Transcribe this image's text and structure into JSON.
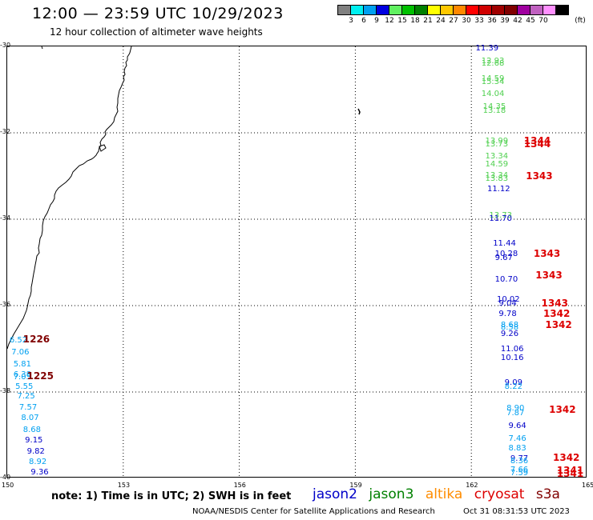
{
  "title": "12:00 — 23:59 UTC 10/29/2023",
  "subtitle": "12 hour collection of altimeter wave heights",
  "legend": {
    "colors": [
      "#808080",
      "#00f0f0",
      "#00a0f0",
      "#0000e0",
      "#60f060",
      "#00c000",
      "#008000",
      "#ffff00",
      "#ffc800",
      "#ff8800",
      "#ff0000",
      "#d00000",
      "#a00000",
      "#800000",
      "#a000a0",
      "#c060c0",
      "#ff90ff",
      "#000000"
    ],
    "ticks": [
      "3",
      "6",
      "9",
      "12",
      "15",
      "18",
      "21",
      "24",
      "27",
      "30",
      "33",
      "36",
      "39",
      "42",
      "45",
      "70"
    ],
    "unit": "(ft)"
  },
  "map": {
    "lat_labels": [
      "-30",
      "-32",
      "-34",
      "-36",
      "-38",
      "-40"
    ],
    "lon_labels": [
      "150",
      "153",
      "156",
      "159",
      "162",
      "165"
    ],
    "lat_range": [
      -40,
      -30
    ],
    "lon_range": [
      150,
      165
    ]
  },
  "observations": [
    {
      "text": "11.39",
      "c": "#0000c8",
      "lon": 162.13,
      "lat": -30.07
    },
    {
      "text": "12.93",
      "c": "#50d050",
      "lon": 162.28,
      "lat": -30.37
    },
    {
      "text": "12.68",
      "c": "#50d050",
      "lon": 162.28,
      "lat": -30.43
    },
    {
      "text": "14.59",
      "c": "#50d050",
      "lon": 162.28,
      "lat": -30.78
    },
    {
      "text": "15.34",
      "c": "#50d050",
      "lon": 162.28,
      "lat": -30.85
    },
    {
      "text": "14.04",
      "c": "#50d050",
      "lon": 162.28,
      "lat": -31.13
    },
    {
      "text": "14.35",
      "c": "#50d050",
      "lon": 162.32,
      "lat": -31.43
    },
    {
      "text": "13.18",
      "c": "#50d050",
      "lon": 162.32,
      "lat": -31.52
    },
    {
      "text": "13.99",
      "c": "#50d050",
      "lon": 162.38,
      "lat": -32.22
    },
    {
      "text": "13.73",
      "c": "#50d050",
      "lon": 162.38,
      "lat": -32.29
    },
    {
      "text": "13.34",
      "c": "#50d050",
      "lon": 162.38,
      "lat": -32.57
    },
    {
      "text": "14.59",
      "c": "#50d050",
      "lon": 162.38,
      "lat": -32.76
    },
    {
      "text": "13.34",
      "c": "#50d050",
      "lon": 162.38,
      "lat": -33.02
    },
    {
      "text": "13.83",
      "c": "#50d050",
      "lon": 162.38,
      "lat": -33.1
    },
    {
      "text": "11.12",
      "c": "#0000c8",
      "lon": 162.43,
      "lat": -33.33
    },
    {
      "text": "13.73",
      "c": "#50d050",
      "lon": 162.48,
      "lat": -33.95
    },
    {
      "text": "11.70",
      "c": "#0000c8",
      "lon": 162.48,
      "lat": -34.02
    },
    {
      "text": "11.44",
      "c": "#0000c8",
      "lon": 162.58,
      "lat": -34.59
    },
    {
      "text": "10.28",
      "c": "#0000c8",
      "lon": 162.63,
      "lat": -34.83
    },
    {
      "text": "9.67",
      "c": "#0000c8",
      "lon": 162.63,
      "lat": -34.93
    },
    {
      "text": "10.70",
      "c": "#0000c8",
      "lon": 162.63,
      "lat": -35.43
    },
    {
      "text": "10.02",
      "c": "#0000c8",
      "lon": 162.68,
      "lat": -35.89
    },
    {
      "text": "9.04",
      "c": "#0000c8",
      "lon": 162.73,
      "lat": -35.98
    },
    {
      "text": "9.78",
      "c": "#0000c8",
      "lon": 162.73,
      "lat": -36.22
    },
    {
      "text": "8.68",
      "c": "#00a0f0",
      "lon": 162.78,
      "lat": -36.48
    },
    {
      "text": "8.58",
      "c": "#00a0f0",
      "lon": 162.78,
      "lat": -36.53
    },
    {
      "text": "9.26",
      "c": "#0000c8",
      "lon": 162.78,
      "lat": -36.69
    },
    {
      "text": "11.06",
      "c": "#0000c8",
      "lon": 162.78,
      "lat": -37.04
    },
    {
      "text": "10.16",
      "c": "#0000c8",
      "lon": 162.78,
      "lat": -37.24
    },
    {
      "text": "9.09",
      "c": "#0000c8",
      "lon": 162.88,
      "lat": -37.81
    },
    {
      "text": "8.22",
      "c": "#00a0f0",
      "lon": 162.88,
      "lat": -37.91
    },
    {
      "text": "8.90",
      "c": "#00a0f0",
      "lon": 162.93,
      "lat": -38.41
    },
    {
      "text": "7.87",
      "c": "#00a0f0",
      "lon": 162.93,
      "lat": -38.52
    },
    {
      "text": "9.64",
      "c": "#0000c8",
      "lon": 162.98,
      "lat": -38.81
    },
    {
      "text": "7.46",
      "c": "#00a0f0",
      "lon": 162.98,
      "lat": -39.11
    },
    {
      "text": "8.83",
      "c": "#00a0f0",
      "lon": 162.98,
      "lat": -39.33
    },
    {
      "text": "9.77",
      "c": "#0000c8",
      "lon": 163.03,
      "lat": -39.57
    },
    {
      "text": "8.36",
      "c": "#00a0f0",
      "lon": 163.03,
      "lat": -39.63
    },
    {
      "text": "7.66",
      "c": "#00a0f0",
      "lon": 163.03,
      "lat": -39.83
    },
    {
      "text": "7.59",
      "c": "#00a0f0",
      "lon": 163.03,
      "lat": -39.9
    },
    {
      "text": "6.52",
      "c": "#00a0f0",
      "lon": 150.08,
      "lat": -36.83
    },
    {
      "text": "7.06",
      "c": "#00a0f0",
      "lon": 150.13,
      "lat": -37.11
    },
    {
      "text": "5.81",
      "c": "#00a0f0",
      "lon": 150.18,
      "lat": -37.39
    },
    {
      "text": "6.38",
      "c": "#00a0f0",
      "lon": 150.18,
      "lat": -37.63
    },
    {
      "text": "7.05",
      "c": "#00a0f0",
      "lon": 150.18,
      "lat": -37.69
    },
    {
      "text": "5.55",
      "c": "#00a0f0",
      "lon": 150.23,
      "lat": -37.91
    },
    {
      "text": "7.25",
      "c": "#00a0f0",
      "lon": 150.28,
      "lat": -38.13
    },
    {
      "text": "7.57",
      "c": "#00a0f0",
      "lon": 150.33,
      "lat": -38.39
    },
    {
      "text": "8.07",
      "c": "#00a0f0",
      "lon": 150.38,
      "lat": -38.63
    },
    {
      "text": "8.68",
      "c": "#00a0f0",
      "lon": 150.43,
      "lat": -38.91
    },
    {
      "text": "9.15",
      "c": "#0000c8",
      "lon": 150.48,
      "lat": -39.15
    },
    {
      "text": "9.82",
      "c": "#0000c8",
      "lon": 150.53,
      "lat": -39.41
    },
    {
      "text": "8.92",
      "c": "#00a0f0",
      "lon": 150.58,
      "lat": -39.65
    },
    {
      "text": "9.36",
      "c": "#0000c8",
      "lon": 150.63,
      "lat": -39.89
    }
  ],
  "passes": [
    {
      "text": "1344",
      "c": "#dd0000",
      "lon": 163.38,
      "lat": -32.2
    },
    {
      "text": "1344",
      "c": "#dd0000",
      "lon": 163.38,
      "lat": -32.27
    },
    {
      "text": "1343",
      "c": "#dd0000",
      "lon": 163.43,
      "lat": -33.02
    },
    {
      "text": "1343",
      "c": "#dd0000",
      "lon": 163.63,
      "lat": -34.82
    },
    {
      "text": "1343",
      "c": "#dd0000",
      "lon": 163.68,
      "lat": -35.32
    },
    {
      "text": "1343",
      "c": "#dd0000",
      "lon": 163.83,
      "lat": -35.96
    },
    {
      "text": "1342",
      "c": "#dd0000",
      "lon": 163.88,
      "lat": -36.2
    },
    {
      "text": "1342",
      "c": "#dd0000",
      "lon": 163.93,
      "lat": -36.46
    },
    {
      "text": "1342",
      "c": "#dd0000",
      "lon": 164.03,
      "lat": -38.43
    },
    {
      "text": "1342",
      "c": "#dd0000",
      "lon": 164.13,
      "lat": -39.54
    },
    {
      "text": "1341",
      "c": "#dd0000",
      "lon": 164.23,
      "lat": -39.83
    },
    {
      "text": "1341",
      "c": "#dd0000",
      "lon": 164.23,
      "lat": -39.9
    },
    {
      "text": "1226",
      "c": "#800000",
      "lon": 150.43,
      "lat": -36.8
    },
    {
      "text": "1225",
      "c": "#800000",
      "lon": 150.53,
      "lat": -37.64
    }
  ],
  "footer": {
    "note": "note:  1) Time is in UTC; 2) SWH is in feet",
    "satellites": [
      {
        "name": "jason2",
        "c": "#0000c8"
      },
      {
        "name": "jason3",
        "c": "#008000"
      },
      {
        "name": "altika",
        "c": "#ff8c00"
      },
      {
        "name": "cryosat",
        "c": "#dd0000"
      },
      {
        "name": "s3a",
        "c": "#800000"
      }
    ],
    "credit": "NOAA/NESDIS Center for Satellite Applications and Research",
    "date": "Oct 31 08:31:53 UTC 2023"
  }
}
